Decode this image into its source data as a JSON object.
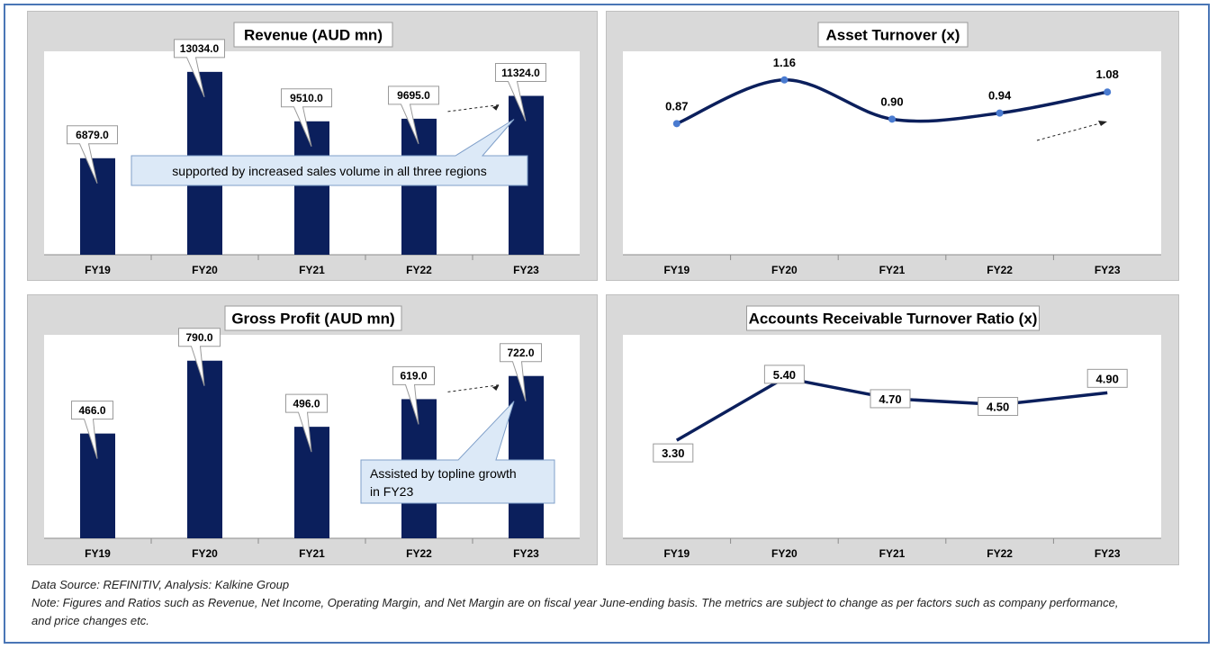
{
  "chart_data": [
    {
      "id": "revenue",
      "type": "bar",
      "title": "Revenue (AUD mn)",
      "categories": [
        "FY19",
        "FY20",
        "FY21",
        "FY22",
        "FY23"
      ],
      "values": [
        6879.0,
        13034.0,
        9510.0,
        9695.0,
        11324.0
      ],
      "value_labels": [
        "6879.0",
        "13034.0",
        "9510.0",
        "9695.0",
        "11324.0"
      ],
      "ylim": [
        0,
        14500
      ],
      "annotation": "supported by increased sales volume in all three regions",
      "bar_color": "#0b1f5c"
    },
    {
      "id": "asset-turnover",
      "type": "line",
      "title": "Asset Turnover (x)",
      "categories": [
        "FY19",
        "FY20",
        "FY21",
        "FY22",
        "FY23"
      ],
      "values": [
        0.87,
        1.16,
        0.9,
        0.94,
        1.08
      ],
      "value_labels": [
        "0.87",
        "1.16",
        "0.90",
        "0.94",
        "1.08"
      ],
      "ylim": [
        0,
        1.35
      ],
      "smooth": true,
      "line_color": "#0b1f5c",
      "marker_color": "#4a7bd0"
    },
    {
      "id": "gross-profit",
      "type": "bar",
      "title": "Gross Profit (AUD mn)",
      "categories": [
        "FY19",
        "FY20",
        "FY21",
        "FY22",
        "FY23"
      ],
      "values": [
        466.0,
        790.0,
        496.0,
        619.0,
        722.0
      ],
      "value_labels": [
        "466.0",
        "790.0",
        "496.0",
        "619.0",
        "722.0"
      ],
      "ylim": [
        0,
        905
      ],
      "annotation": "Assisted by topline growth in FY23",
      "bar_color": "#0b1f5c"
    },
    {
      "id": "ar-turnover",
      "type": "line",
      "title": "Accounts Receivable Turnover Ratio (x)",
      "categories": [
        "FY19",
        "FY20",
        "FY21",
        "FY22",
        "FY23"
      ],
      "values": [
        3.3,
        5.4,
        4.7,
        4.5,
        4.9
      ],
      "value_labels": [
        "3.30",
        "5.40",
        "4.70",
        "4.50",
        "4.90"
      ],
      "ylim": [
        0,
        6.85
      ],
      "smooth": false,
      "line_color": "#0b1f5c"
    }
  ],
  "footer": {
    "source": "Data Source: REFINITIV, Analysis: Kalkine Group",
    "note_line1": "Note: Figures and Ratios such as Revenue, Net Income, Operating Margin, and Net Margin are on fiscal year June-ending basis. The metrics are subject to change as per factors such as company performance,",
    "note_line2": "and price changes etc."
  }
}
